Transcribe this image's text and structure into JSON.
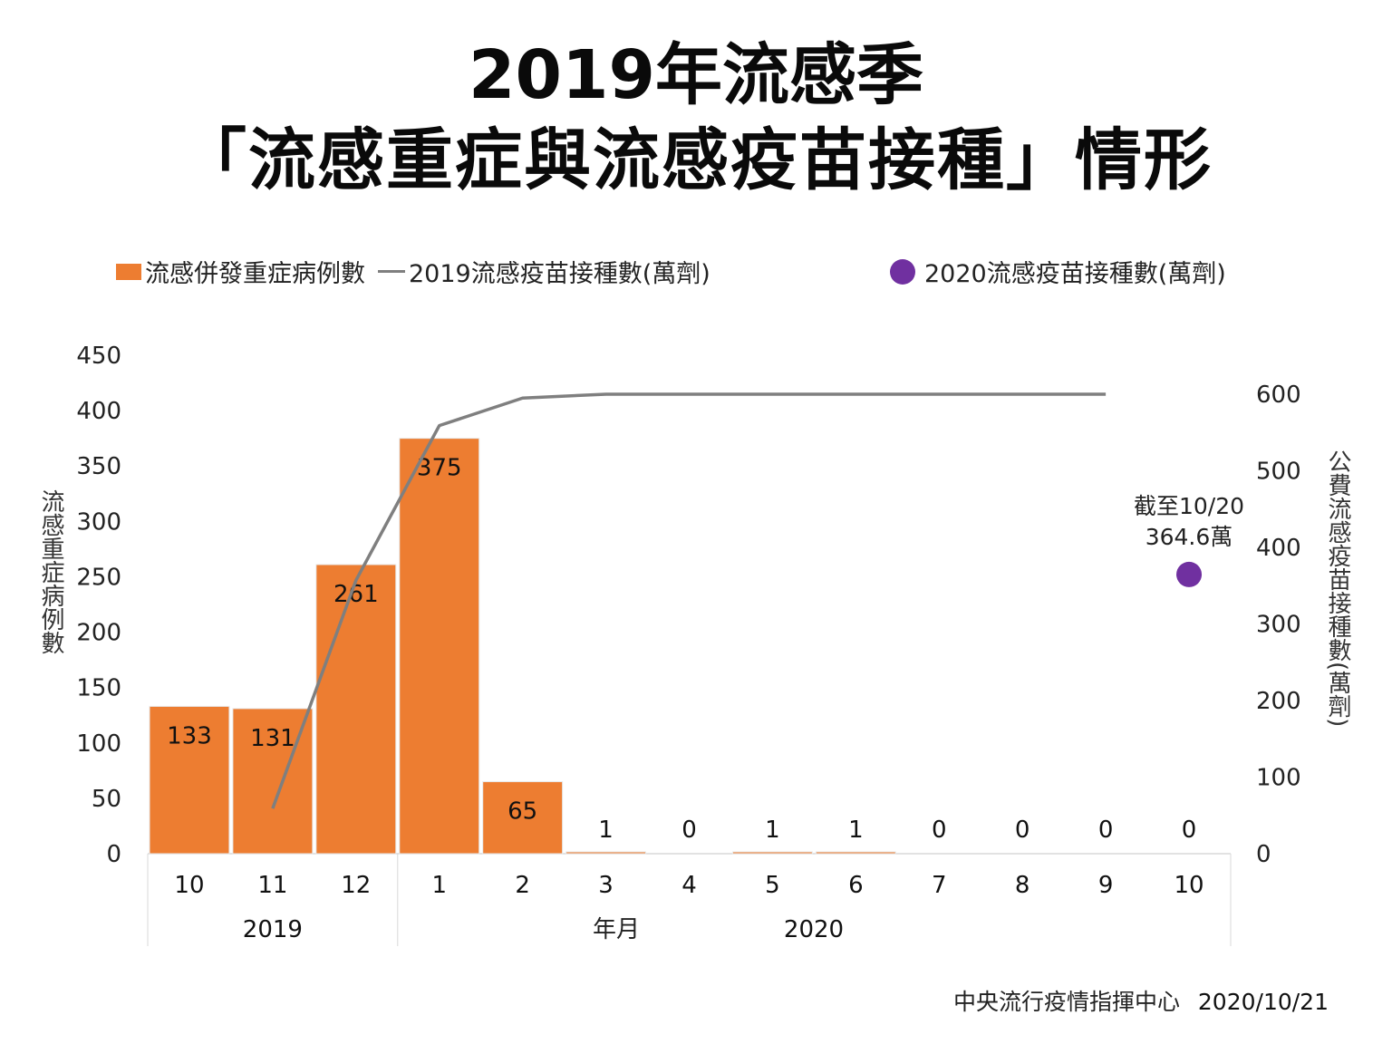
{
  "title_line1": "2019年流感季",
  "title_line2": "「流感重症與流感疫苗接種」情形",
  "legend": {
    "bar_label": "流感併發重症病例數",
    "line_label": "2019流感疫苗接種數(萬劑)",
    "dot_label": "2020流感疫苗接種數(萬劑)"
  },
  "annotation": {
    "line1": "截至10/20",
    "line2": "364.6萬"
  },
  "footer": {
    "source": "中央流行疫情指揮中心",
    "date": "2020/10/21"
  },
  "colors": {
    "bar": "#ED7D31",
    "line": "#7f7f7f",
    "dot": "#7030A0"
  },
  "chart_data": {
    "type": "bar",
    "title": "2019年流感季「流感重症與流感疫苗接種」情形",
    "xlabel": "年月",
    "ylabel": "流感重症病例數",
    "y2label": "公費流感疫苗接種數(萬劑)",
    "categories": [
      "10",
      "11",
      "12",
      "1",
      "2",
      "3",
      "4",
      "5",
      "6",
      "7",
      "8",
      "9",
      "10"
    ],
    "year_groups": [
      {
        "label": "2019",
        "start": 0,
        "end": 2
      },
      {
        "label": "2020",
        "start": 3,
        "end": 12
      }
    ],
    "ylim": [
      0,
      450
    ],
    "yticks": [
      0,
      50,
      100,
      150,
      200,
      250,
      300,
      350,
      400,
      450
    ],
    "y2lim": [
      0,
      600
    ],
    "y2ticks": [
      0,
      100,
      200,
      300,
      400,
      500,
      600
    ],
    "series": [
      {
        "name": "流感併發重症病例數",
        "type": "bar",
        "axis": "left",
        "values": [
          133,
          131,
          261,
          375,
          65,
          1,
          0,
          1,
          1,
          0,
          0,
          0,
          0
        ]
      },
      {
        "name": "2019流感疫苗接種數(萬劑)",
        "type": "line",
        "axis": "right",
        "values": [
          null,
          59,
          357,
          559,
          595,
          600,
          600,
          600,
          600,
          600,
          600,
          600,
          null
        ]
      },
      {
        "name": "2020流感疫苗接種數(萬劑)",
        "type": "scatter",
        "axis": "right",
        "values": [
          null,
          null,
          null,
          null,
          null,
          null,
          null,
          null,
          null,
          null,
          null,
          null,
          364.6
        ]
      }
    ],
    "grid": false,
    "legend_position": "top"
  }
}
